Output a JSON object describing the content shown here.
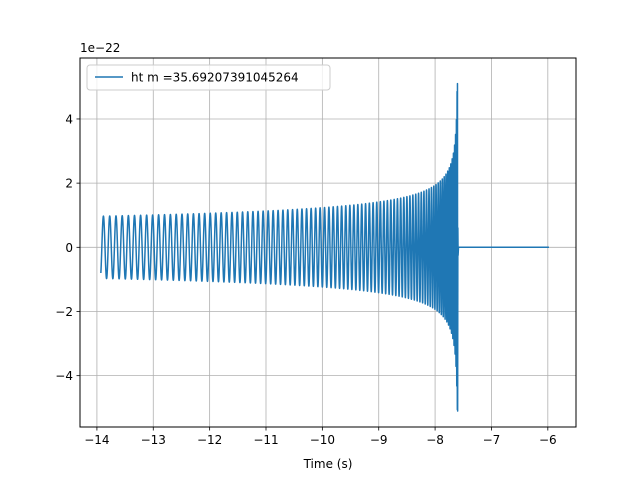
{
  "chart_data": {
    "type": "line",
    "title": "",
    "xlabel": "Time (s)",
    "ylabel": "",
    "offset_text": "1e−22",
    "scale_exponent": -22,
    "xlim": [
      -14.3,
      -5.5
    ],
    "ylim": [
      -5.6,
      5.9
    ],
    "xticks": [
      -14,
      -13,
      -12,
      -11,
      -10,
      -9,
      -8,
      -7,
      -6
    ],
    "xtick_labels": [
      "−14",
      "−13",
      "−12",
      "−11",
      "−10",
      "−9",
      "−8",
      "−7",
      "−6"
    ],
    "yticks": [
      -4,
      -2,
      0,
      2,
      4
    ],
    "ytick_labels": [
      "−4",
      "−2",
      "0",
      "2",
      "4"
    ],
    "grid": true,
    "legend": {
      "position": "top-left",
      "entries": [
        "ht m =35.69207391045264"
      ]
    },
    "series": [
      {
        "name": "ht m =35.69207391045264",
        "color": "#1f77b4",
        "waveform": {
          "kind": "chirp",
          "t_start": -13.93,
          "t_merger": -7.6,
          "t_end": -5.98,
          "amplitude_start": 0.97,
          "peak_amplitude": 5.1,
          "start_frequency_hz": 10.5,
          "cycles": 90
        }
      }
    ]
  }
}
